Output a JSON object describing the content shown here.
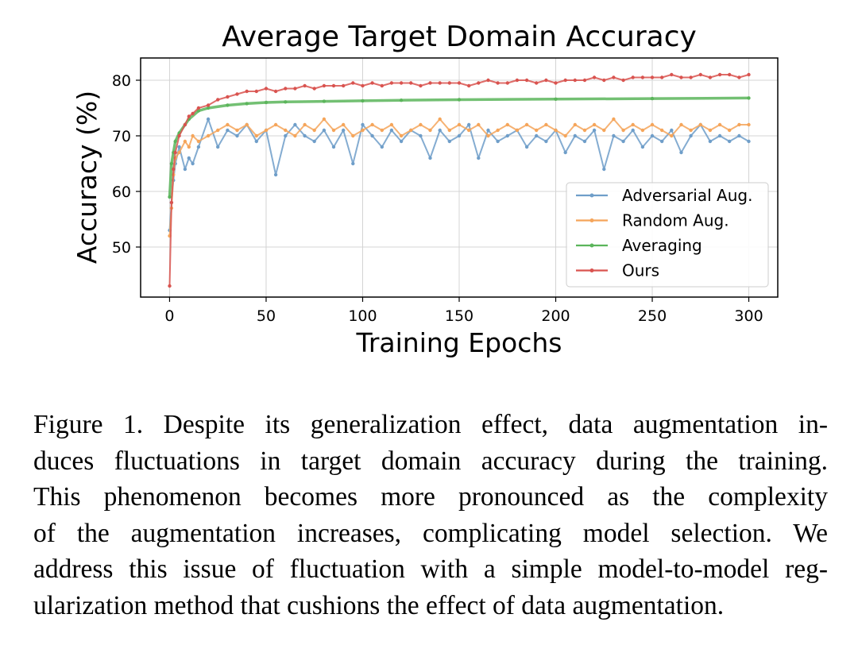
{
  "chart_data": {
    "type": "line",
    "title": "Average Target Domain Accuracy",
    "xlabel": "Training Epochs",
    "ylabel": "Accuracy (%)",
    "xlim": [
      -15,
      315
    ],
    "ylim": [
      41,
      84
    ],
    "xticks": [
      0,
      50,
      100,
      150,
      200,
      250,
      300
    ],
    "yticks": [
      50,
      60,
      70,
      80
    ],
    "grid": true,
    "legend_position": "lower-right",
    "series": [
      {
        "name": "Adversarial Aug.",
        "color": "#6f9ec9",
        "x": [
          0,
          1,
          2,
          3,
          5,
          8,
          10,
          12,
          15,
          20,
          25,
          30,
          35,
          40,
          45,
          50,
          55,
          60,
          65,
          70,
          75,
          80,
          85,
          90,
          95,
          100,
          105,
          110,
          115,
          120,
          125,
          130,
          135,
          140,
          145,
          150,
          155,
          160,
          165,
          170,
          175,
          180,
          185,
          190,
          195,
          200,
          205,
          210,
          215,
          220,
          225,
          230,
          235,
          240,
          245,
          250,
          255,
          260,
          265,
          270,
          275,
          280,
          285,
          290,
          295,
          300
        ],
        "y": [
          53,
          58,
          62,
          65,
          68,
          64,
          66,
          65,
          68,
          73,
          68,
          71,
          70,
          72,
          69,
          71,
          63,
          70,
          72,
          70,
          69,
          71,
          68,
          71,
          65,
          72,
          70,
          68,
          71,
          69,
          71,
          70,
          66,
          71,
          69,
          70,
          72,
          66,
          71,
          69,
          70,
          71,
          68,
          70,
          69,
          71,
          67,
          70,
          69,
          71,
          64,
          70,
          69,
          71,
          68,
          70,
          69,
          71,
          67,
          70,
          72,
          69,
          70,
          69,
          70,
          69
        ]
      },
      {
        "name": "Random Aug.",
        "color": "#f5a55a",
        "x": [
          0,
          1,
          2,
          3,
          5,
          8,
          10,
          12,
          15,
          20,
          25,
          30,
          35,
          40,
          45,
          50,
          55,
          60,
          65,
          70,
          75,
          80,
          85,
          90,
          95,
          100,
          105,
          110,
          115,
          120,
          125,
          130,
          135,
          140,
          145,
          150,
          155,
          160,
          165,
          170,
          175,
          180,
          185,
          190,
          195,
          200,
          205,
          210,
          215,
          220,
          225,
          230,
          235,
          240,
          245,
          250,
          255,
          260,
          265,
          270,
          275,
          280,
          285,
          290,
          295,
          300
        ],
        "y": [
          52,
          57,
          63,
          66,
          67,
          69,
          68,
          70,
          69,
          70,
          71,
          72,
          71,
          72,
          70,
          71,
          72,
          71,
          70,
          72,
          71,
          73,
          71,
          72,
          70,
          71,
          72,
          71,
          72,
          70,
          71,
          72,
          71,
          73,
          71,
          72,
          71,
          72,
          70,
          71,
          72,
          71,
          72,
          71,
          72,
          71,
          70,
          72,
          71,
          72,
          71,
          73,
          71,
          72,
          71,
          72,
          71,
          70,
          72,
          71,
          72,
          71,
          72,
          71,
          72,
          72
        ]
      },
      {
        "name": "Averaging",
        "color": "#5bb55b",
        "x": [
          0,
          1,
          2,
          3,
          5,
          8,
          10,
          15,
          20,
          30,
          40,
          50,
          60,
          80,
          100,
          120,
          150,
          200,
          250,
          300
        ],
        "y": [
          59,
          65,
          67,
          69,
          70.5,
          72,
          73,
          74.5,
          75,
          75.5,
          75.8,
          76,
          76.1,
          76.2,
          76.3,
          76.4,
          76.5,
          76.6,
          76.7,
          76.8
        ]
      },
      {
        "name": "Ours",
        "color": "#d9534f",
        "x": [
          0,
          1,
          2,
          3,
          5,
          8,
          10,
          12,
          15,
          20,
          25,
          30,
          35,
          40,
          45,
          50,
          55,
          60,
          65,
          70,
          75,
          80,
          85,
          90,
          95,
          100,
          105,
          110,
          115,
          120,
          125,
          130,
          135,
          140,
          145,
          150,
          155,
          160,
          165,
          170,
          175,
          180,
          185,
          190,
          195,
          200,
          205,
          210,
          215,
          220,
          225,
          230,
          235,
          240,
          245,
          250,
          255,
          260,
          265,
          270,
          275,
          280,
          285,
          290,
          295,
          300
        ],
        "y": [
          43,
          58,
          64,
          67,
          70,
          72,
          73.5,
          74,
          75,
          75.5,
          76.5,
          77,
          77.5,
          78,
          78,
          78.5,
          78,
          78.5,
          78.5,
          79,
          78.5,
          79,
          79,
          79,
          79.5,
          79,
          79.5,
          79,
          79.5,
          79.5,
          79.5,
          79,
          79.5,
          79.5,
          79.5,
          79.5,
          79,
          79.5,
          80,
          79.5,
          79.5,
          80,
          80,
          79.5,
          80,
          79.5,
          80,
          80,
          80,
          80.5,
          80,
          80.5,
          80,
          80.5,
          80.5,
          80.5,
          80.5,
          81,
          80.5,
          80.5,
          81,
          80.5,
          81,
          81,
          80.5,
          81
        ]
      }
    ]
  },
  "caption": {
    "lines": [
      "Figure 1.  Despite its generalization effect, data augmentation in-",
      "duces fluctuations in target domain accuracy during the training.",
      "This phenomenon becomes more pronounced as the complexity",
      "of the augmentation increases, complicating model selection. We",
      "address this issue of fluctuation with a simple model-to-model reg-",
      "ularization method that cushions the effect of data augmentation."
    ]
  }
}
